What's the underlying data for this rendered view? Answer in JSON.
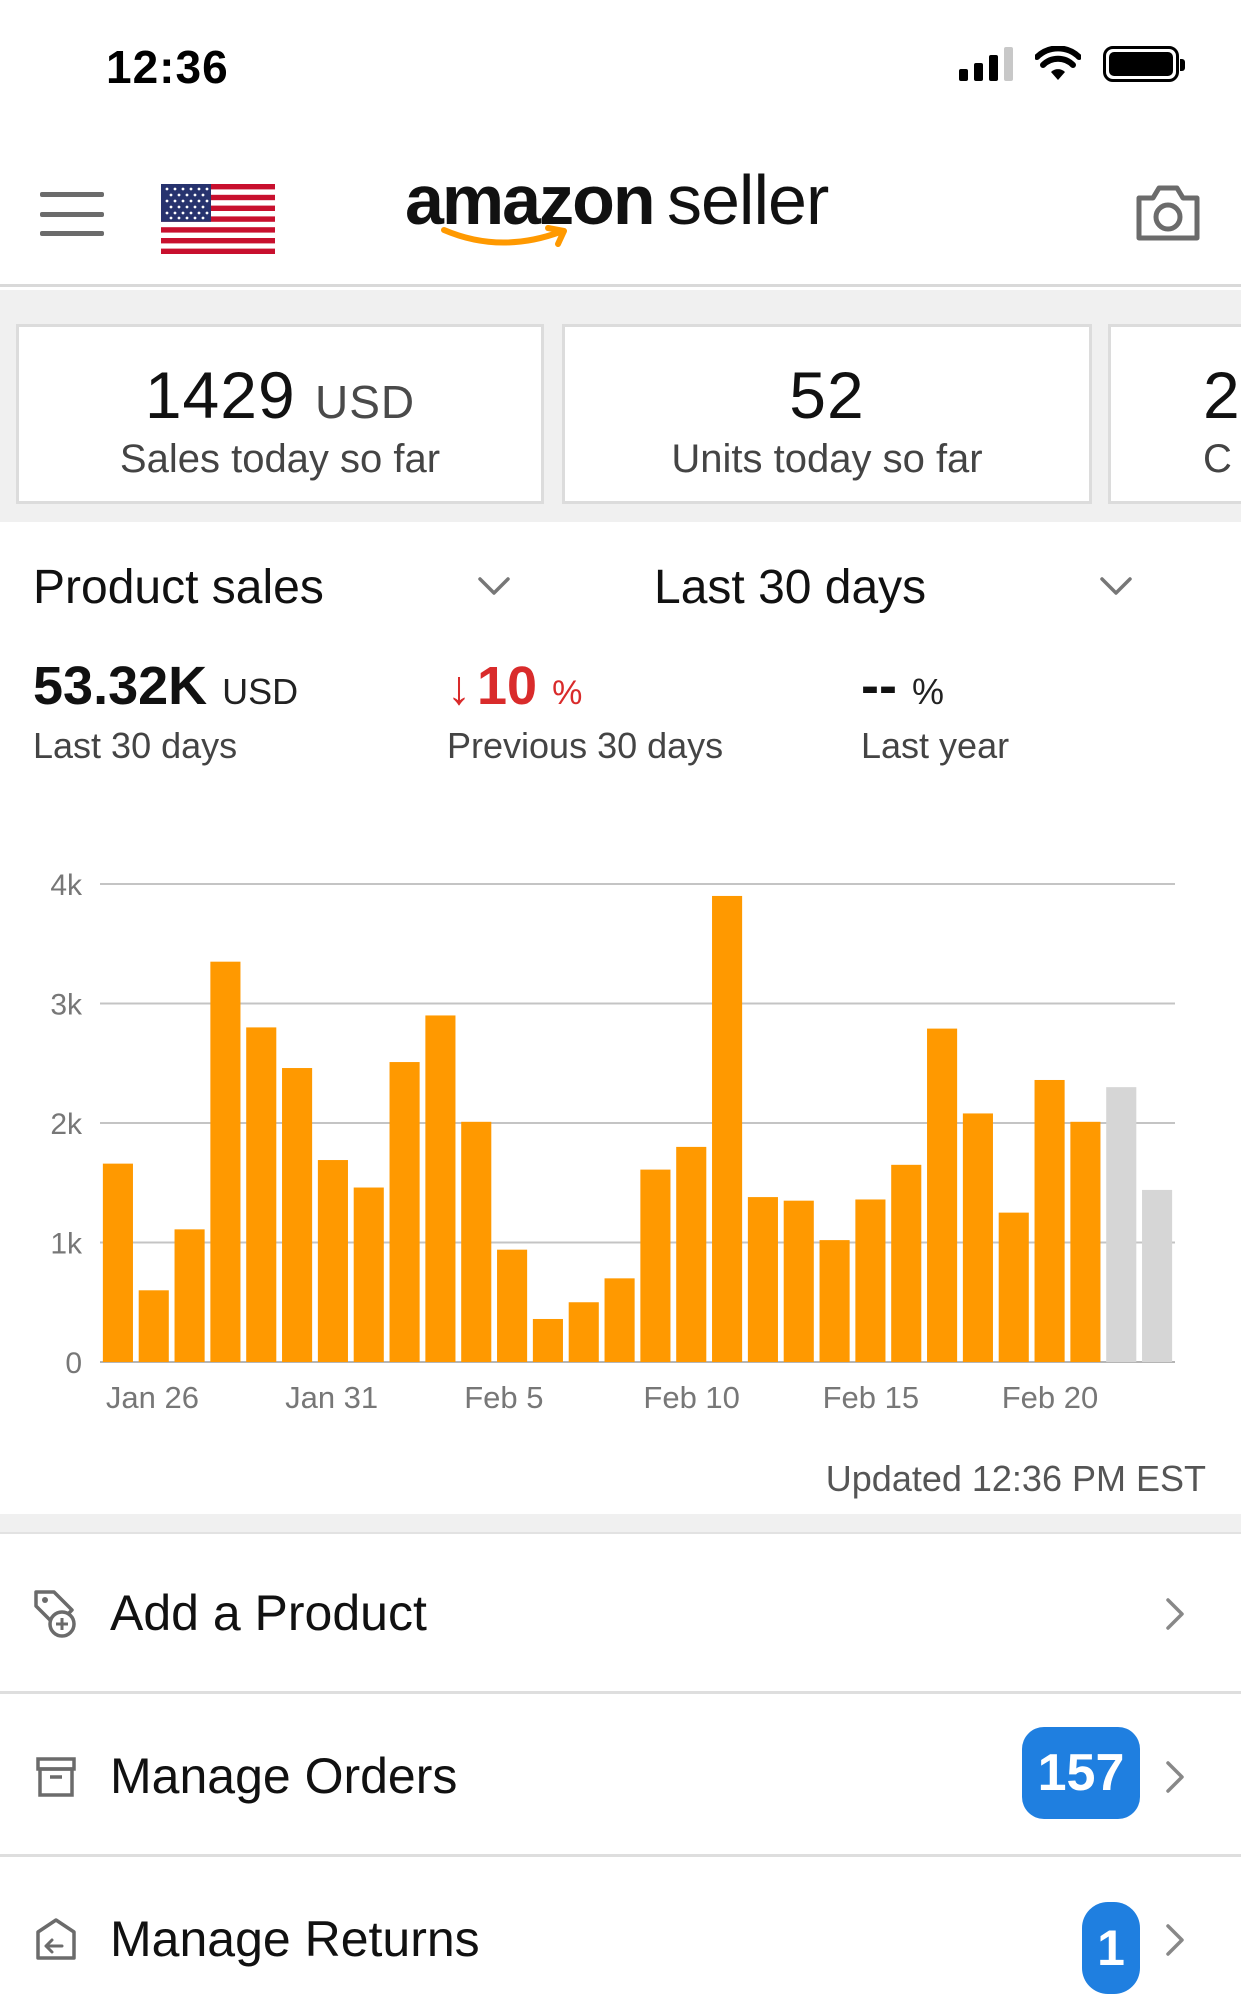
{
  "status_bar": {
    "time": "12:36"
  },
  "header": {
    "brand_amazon": "amazon",
    "brand_seller": "seller"
  },
  "cards": [
    {
      "value": "1429",
      "unit": "USD",
      "label": "Sales today so far"
    },
    {
      "value": "52",
      "unit": "",
      "label": "Units today so far"
    },
    {
      "value": "2",
      "unit": "",
      "label": "C"
    }
  ],
  "selectors": {
    "metric": "Product sales",
    "range": "Last 30 days"
  },
  "metrics": {
    "total": {
      "value": "53.32K",
      "unit": "USD",
      "label": "Last 30 days"
    },
    "previous": {
      "arrow": "↓",
      "value": "10",
      "unit": "%",
      "label": "Previous 30 days"
    },
    "last_year": {
      "value": "--",
      "unit": "%",
      "label": "Last year"
    }
  },
  "chart_data": {
    "type": "bar",
    "ylim": [
      0,
      4000
    ],
    "yticks": [
      {
        "value": 0,
        "label": "0"
      },
      {
        "value": 1000,
        "label": "1k"
      },
      {
        "value": 2000,
        "label": "2k"
      },
      {
        "value": 3000,
        "label": "3k"
      },
      {
        "value": 4000,
        "label": "4k"
      }
    ],
    "xtick_labels": [
      {
        "index": 0,
        "label": "Jan 26"
      },
      {
        "index": 5,
        "label": "Jan 31"
      },
      {
        "index": 10,
        "label": "Feb 5"
      },
      {
        "index": 15,
        "label": "Feb 10"
      },
      {
        "index": 20,
        "label": "Feb 15"
      },
      {
        "index": 25,
        "label": "Feb 20"
      }
    ],
    "values": [
      1660,
      600,
      1110,
      3350,
      2800,
      2460,
      1690,
      1460,
      2510,
      2900,
      2010,
      940,
      360,
      500,
      700,
      1610,
      1800,
      3900,
      1380,
      1350,
      1020,
      1360,
      1650,
      2790,
      2080,
      1250,
      2360,
      2010,
      2300,
      1440
    ],
    "bar_colors": [
      "#ff9900",
      "#ff9900",
      "#ff9900",
      "#ff9900",
      "#ff9900",
      "#ff9900",
      "#ff9900",
      "#ff9900",
      "#ff9900",
      "#ff9900",
      "#ff9900",
      "#ff9900",
      "#ff9900",
      "#ff9900",
      "#ff9900",
      "#ff9900",
      "#ff9900",
      "#ff9900",
      "#ff9900",
      "#ff9900",
      "#ff9900",
      "#ff9900",
      "#ff9900",
      "#ff9900",
      "#ff9900",
      "#ff9900",
      "#ff9900",
      "#ff9900",
      "#d6d6d6",
      "#d6d6d6"
    ],
    "grid": true
  },
  "updated_text": "Updated 12:36 PM EST",
  "list": [
    {
      "label": "Add a Product",
      "badge": ""
    },
    {
      "label": "Manage Orders",
      "badge": "157"
    },
    {
      "label": "Manage Returns",
      "badge": "1"
    }
  ],
  "colors": {
    "accent": "#ff9900",
    "badge": "#1f7fe0",
    "negative": "#d92b2b",
    "future": "#d6d6d6"
  },
  "icons": {
    "menu": "hamburger-icon",
    "flag": "us-flag-icon",
    "camera": "camera-icon",
    "chevron_down": "chevron-down-icon",
    "chevron_right": "chevron-right-icon",
    "add_product": "tag-plus-icon",
    "orders": "box-icon",
    "returns": "return-box-icon"
  }
}
